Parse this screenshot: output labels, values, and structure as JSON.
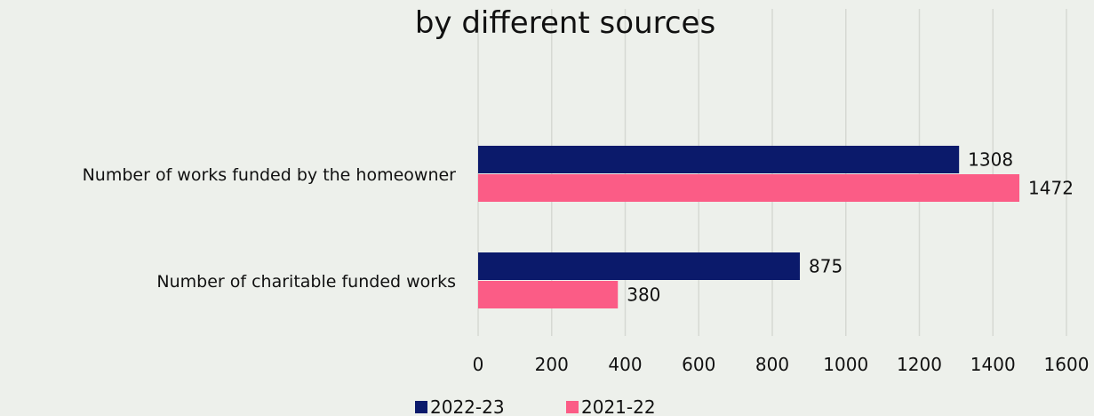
{
  "chart_data": {
    "type": "bar",
    "orientation": "horizontal",
    "title": "by different sources",
    "categories": [
      "Number of works funded by the homeowner",
      "Number of charitable funded works"
    ],
    "series": [
      {
        "name": "2022-23",
        "values": [
          1308,
          875
        ],
        "color": "#0b1a6b"
      },
      {
        "name": "2021-22",
        "values": [
          1472,
          380
        ],
        "color": "#fb5c86"
      }
    ],
    "xlim": [
      0,
      1600
    ],
    "xticks": [
      0,
      200,
      400,
      600,
      800,
      1000,
      1200,
      1400,
      1600
    ],
    "grid": true,
    "legend_position": "bottom"
  }
}
